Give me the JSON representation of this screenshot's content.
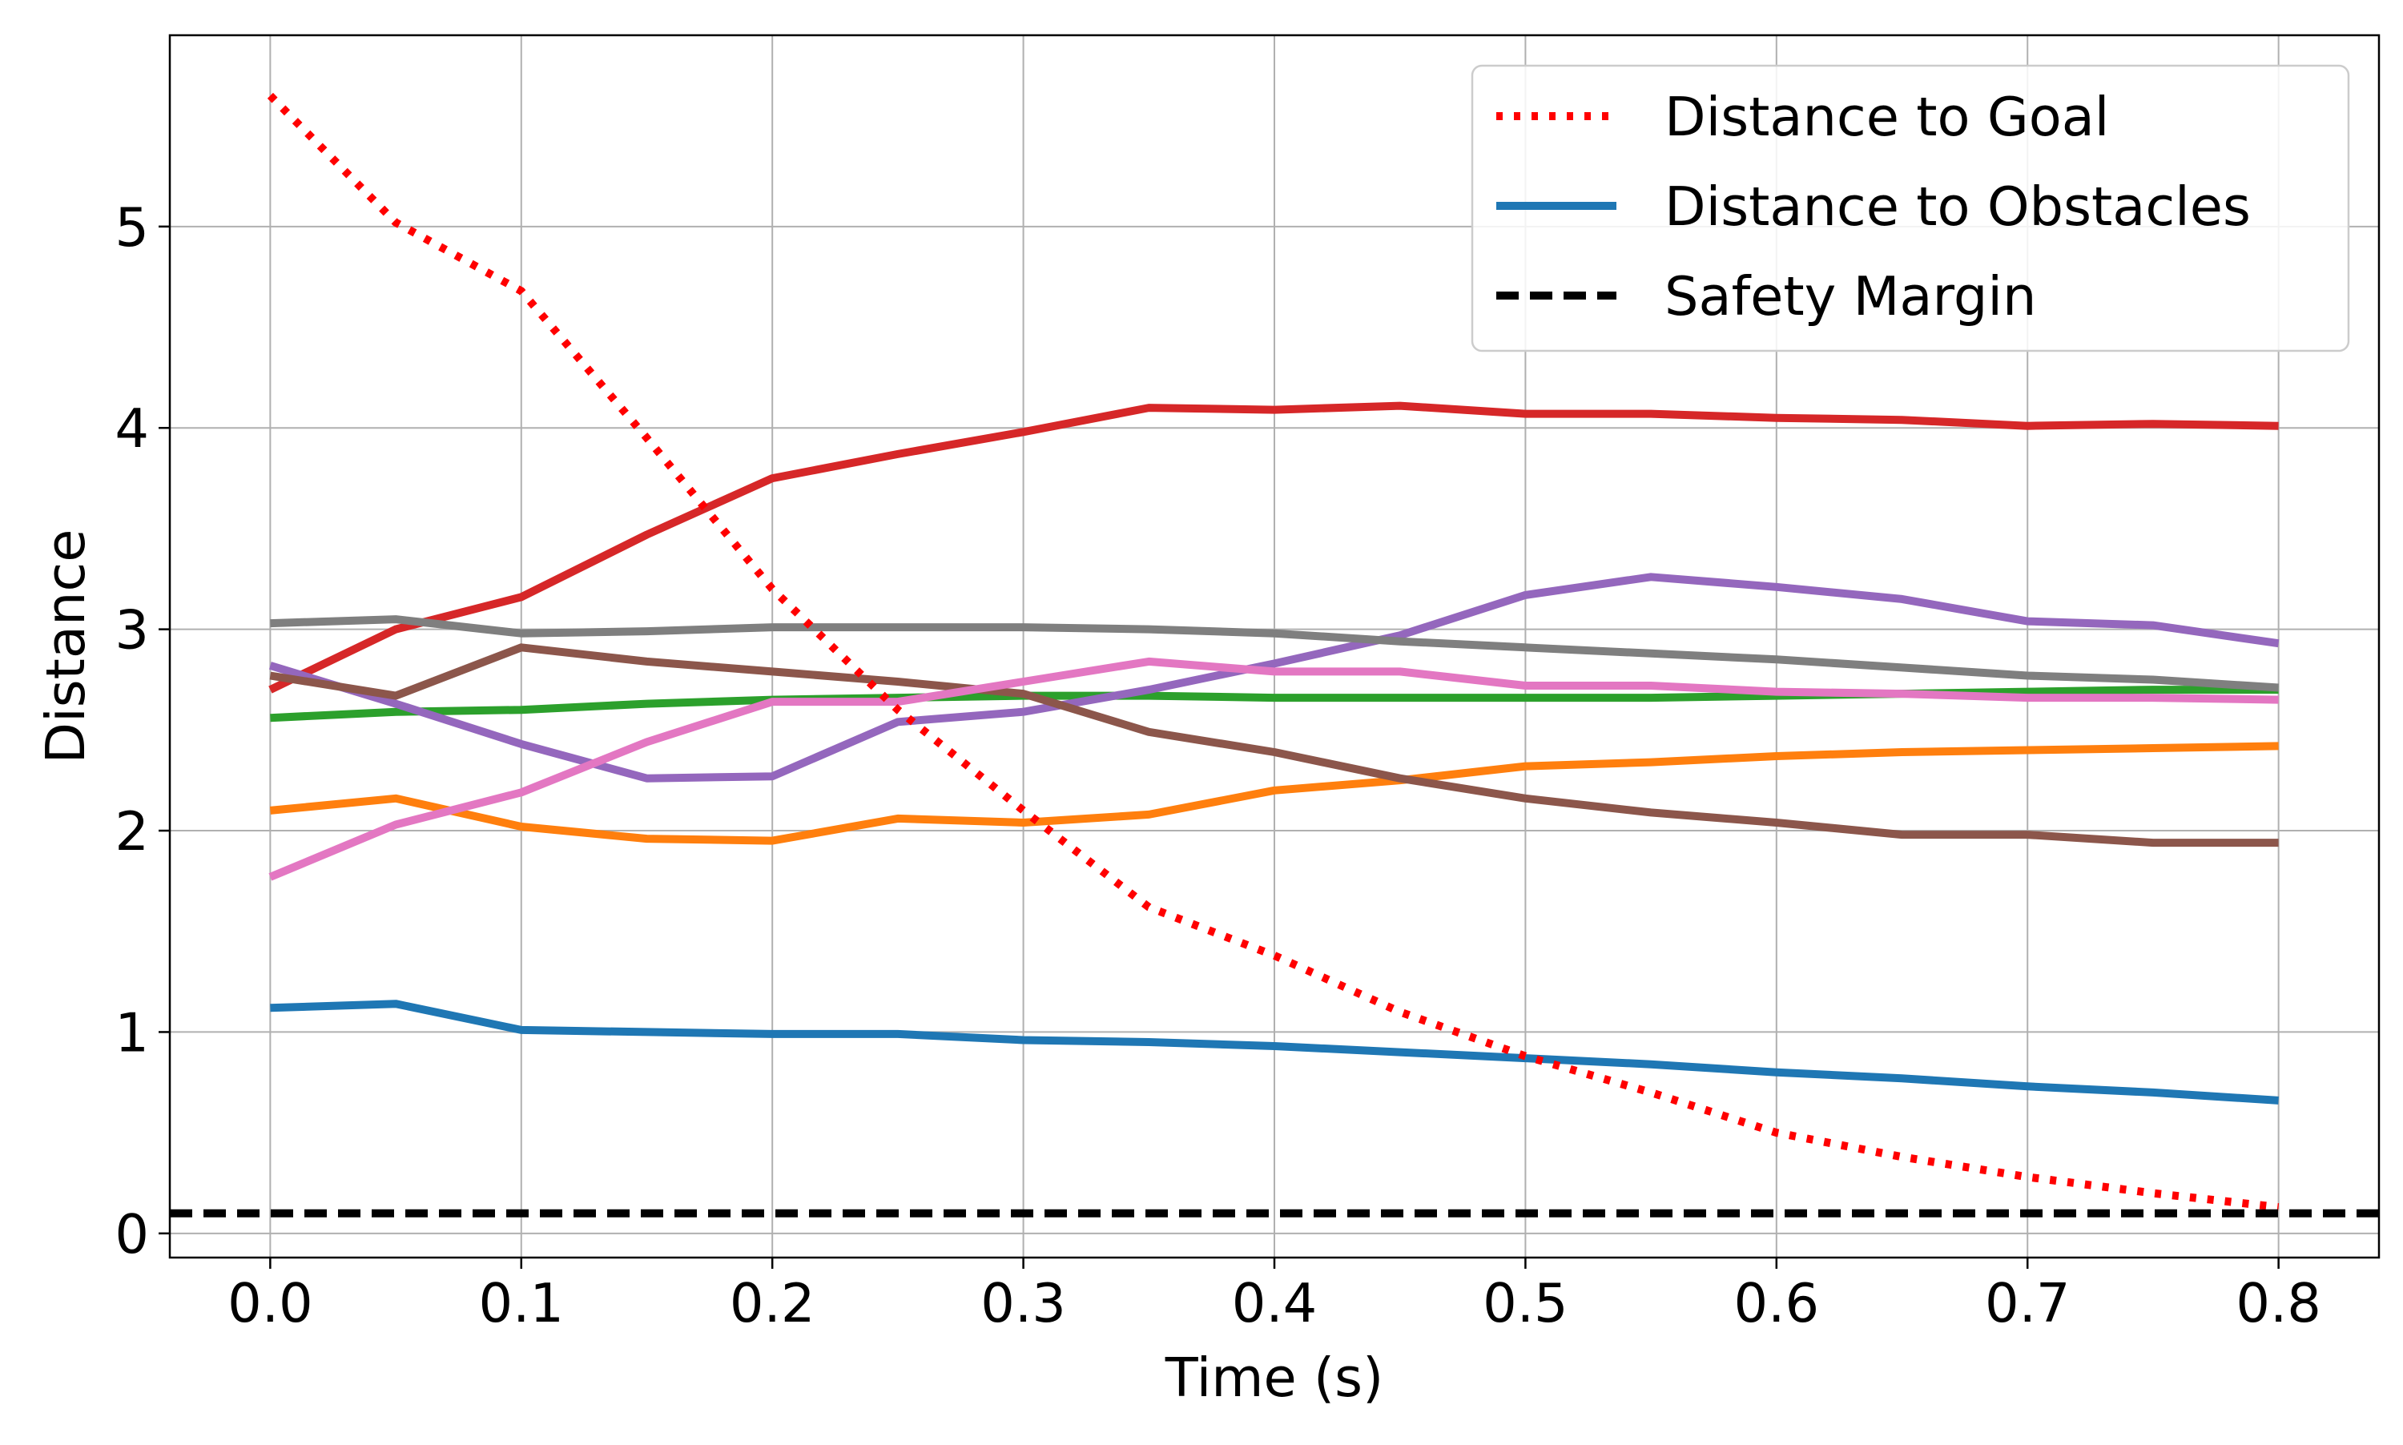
{
  "chart_data": {
    "type": "line",
    "title": "",
    "xlabel": "Time (s)",
    "ylabel": "Distance",
    "xlim": [
      -0.04,
      0.84
    ],
    "ylim": [
      -0.12,
      5.95
    ],
    "xticks": [
      0.0,
      0.1,
      0.2,
      0.3,
      0.4,
      0.5,
      0.6,
      0.7,
      0.8
    ],
    "xtick_labels": [
      "0.0",
      "0.1",
      "0.2",
      "0.3",
      "0.4",
      "0.5",
      "0.6",
      "0.7",
      "0.8"
    ],
    "yticks": [
      0,
      1,
      2,
      3,
      4,
      5
    ],
    "ytick_labels": [
      "0",
      "1",
      "2",
      "3",
      "4",
      "5"
    ],
    "grid": true,
    "legend_position": "top-right",
    "x": [
      0.0,
      0.05,
      0.1,
      0.15,
      0.2,
      0.25,
      0.3,
      0.35,
      0.4,
      0.45,
      0.5,
      0.55,
      0.6,
      0.65,
      0.7,
      0.75,
      0.8
    ],
    "series": [
      {
        "name": "Distance to Goal",
        "color": "#ff0000",
        "style": "dotted",
        "values": [
          5.65,
          5.02,
          4.68,
          3.95,
          3.2,
          2.6,
          2.1,
          1.62,
          1.38,
          1.1,
          0.88,
          0.7,
          0.5,
          0.38,
          0.28,
          0.2,
          0.13
        ]
      },
      {
        "name": "Distance to Obstacles",
        "color": "#1f77b4",
        "style": "solid",
        "values": [
          1.12,
          1.14,
          1.01,
          1.0,
          0.99,
          0.99,
          0.96,
          0.95,
          0.93,
          0.9,
          0.87,
          0.84,
          0.8,
          0.77,
          0.73,
          0.7,
          0.66
        ]
      },
      {
        "color": "#ff7f0e",
        "style": "solid",
        "values": [
          2.1,
          2.16,
          2.02,
          1.96,
          1.95,
          2.06,
          2.04,
          2.08,
          2.2,
          2.25,
          2.32,
          2.34,
          2.37,
          2.39,
          2.4,
          2.41,
          2.42
        ]
      },
      {
        "color": "#2ca02c",
        "style": "solid",
        "values": [
          2.56,
          2.59,
          2.6,
          2.63,
          2.65,
          2.66,
          2.67,
          2.67,
          2.66,
          2.66,
          2.66,
          2.66,
          2.67,
          2.68,
          2.69,
          2.7,
          2.7
        ]
      },
      {
        "color": "#d62728",
        "style": "solid",
        "values": [
          2.7,
          3.0,
          3.16,
          3.47,
          3.75,
          3.87,
          3.98,
          4.1,
          4.09,
          4.11,
          4.07,
          4.07,
          4.05,
          4.04,
          4.01,
          4.02,
          4.01
        ]
      },
      {
        "color": "#9467bd",
        "style": "solid",
        "values": [
          2.82,
          2.63,
          2.43,
          2.26,
          2.27,
          2.54,
          2.59,
          2.7,
          2.83,
          2.97,
          3.17,
          3.26,
          3.21,
          3.15,
          3.04,
          3.02,
          2.93
        ]
      },
      {
        "color": "#8c564b",
        "style": "solid",
        "values": [
          2.77,
          2.67,
          2.91,
          2.84,
          2.79,
          2.74,
          2.68,
          2.49,
          2.39,
          2.26,
          2.16,
          2.09,
          2.04,
          1.98,
          1.98,
          1.94,
          1.94
        ]
      },
      {
        "color": "#e377c2",
        "style": "solid",
        "values": [
          1.77,
          2.03,
          2.19,
          2.44,
          2.64,
          2.64,
          2.74,
          2.84,
          2.79,
          2.79,
          2.72,
          2.72,
          2.69,
          2.68,
          2.66,
          2.66,
          2.65
        ]
      },
      {
        "color": "#7f7f7f",
        "style": "solid",
        "values": [
          3.03,
          3.05,
          2.98,
          2.99,
          3.01,
          3.01,
          3.01,
          3.0,
          2.98,
          2.94,
          2.91,
          2.88,
          2.85,
          2.81,
          2.77,
          2.75,
          2.71
        ]
      }
    ],
    "hlines": [
      {
        "name": "Safety Margin",
        "y": 0.1,
        "color": "#000000",
        "style": "dashed"
      }
    ]
  }
}
